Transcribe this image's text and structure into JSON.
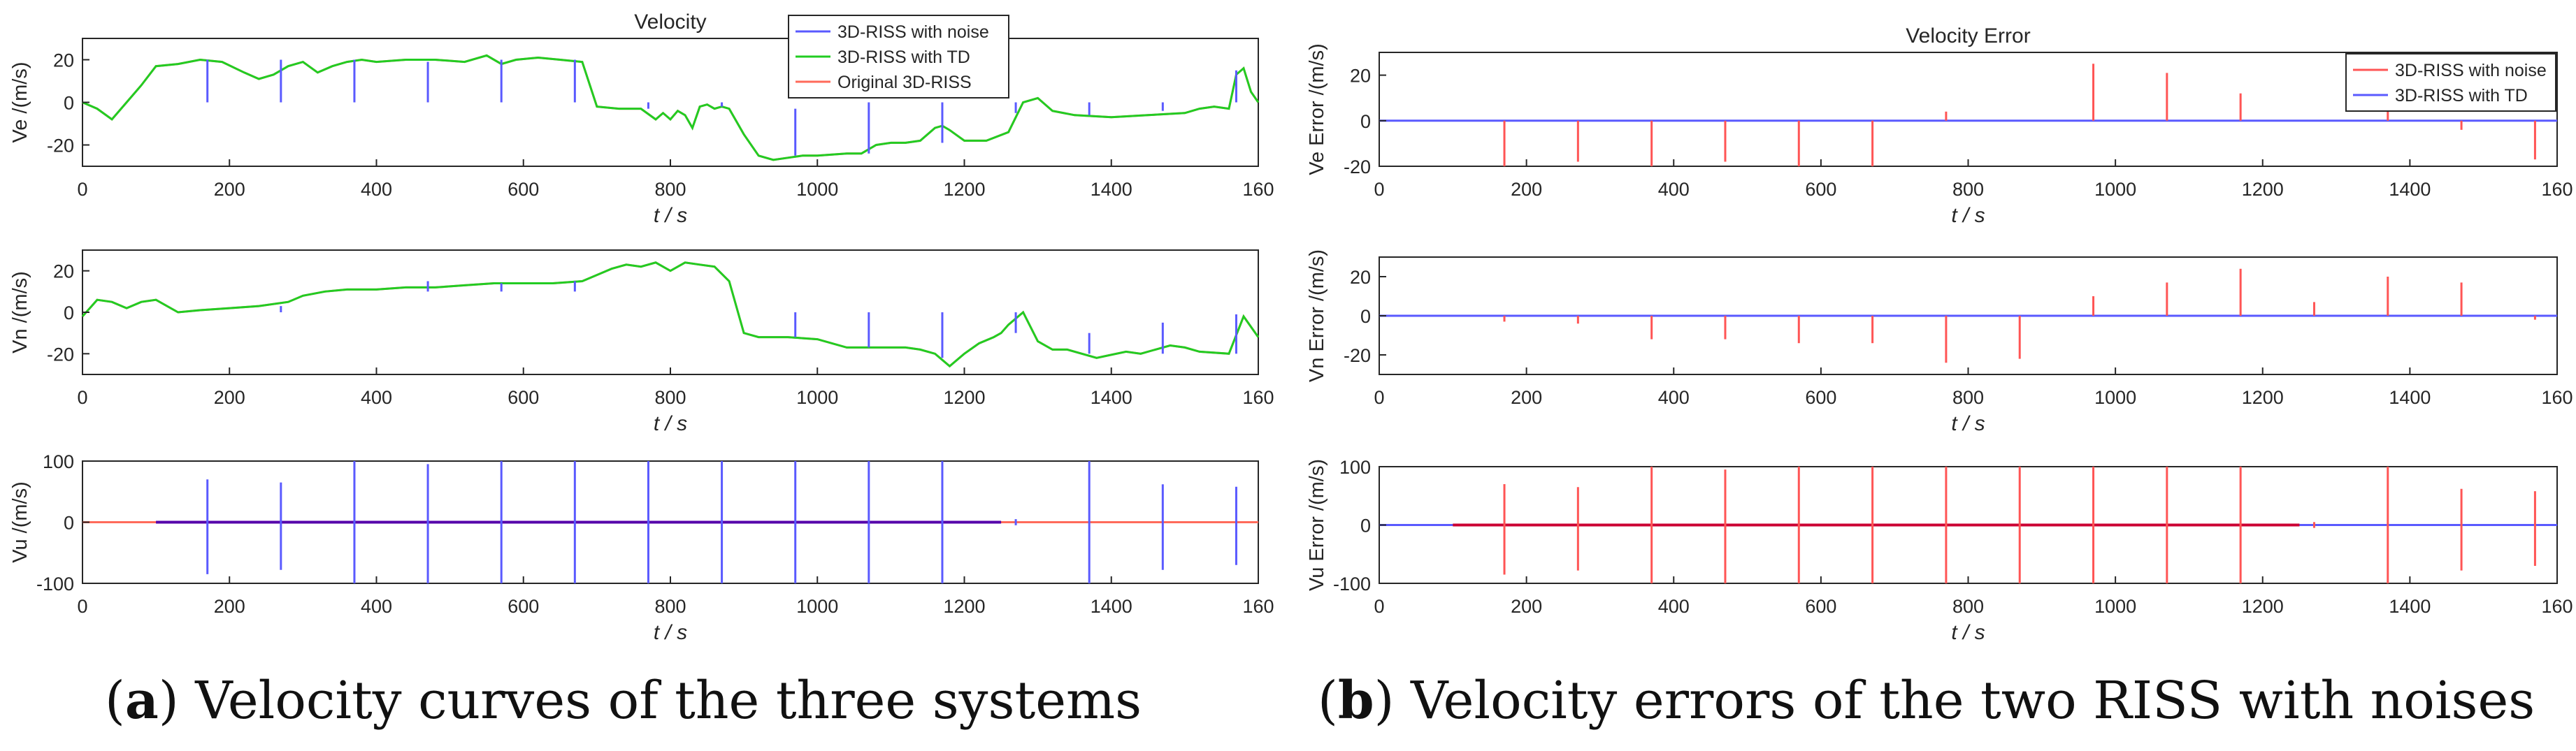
{
  "figure": {
    "caption_a": {
      "label": "a",
      "text": "Velocity curves of the three systems"
    },
    "caption_b": {
      "label": "b",
      "text": "Velocity errors of the two RISS with noises"
    }
  },
  "colors": {
    "noise": "#5a5aff",
    "td": "#22cc22",
    "original": "#ff6a5a",
    "err_noise": "#ff5555",
    "err_td": "#5a5aff",
    "vu_overlay": "#5500aa",
    "err_vu_overlay": "#cc0033"
  },
  "chart_data": [
    {
      "id": "a1",
      "type": "line",
      "title": "Velocity",
      "ylabel": "Ve /(m/s)",
      "xlabel": "t / s",
      "xlim": [
        0,
        1600
      ],
      "ylim": [
        -30,
        30
      ],
      "xticks": [
        "0",
        "200",
        "400",
        "600",
        "800",
        "1000",
        "1200",
        "1400",
        "160"
      ],
      "yticks": [
        20,
        0,
        -20
      ],
      "legend": [
        "3D-RISS with noise",
        "3D-RISS with TD",
        "Original 3D-RISS"
      ],
      "legend_pos": "top-right",
      "series": [
        {
          "name": "Original 3D-RISS",
          "style": "original",
          "x": [
            0,
            20,
            40,
            60,
            80,
            100,
            130,
            160,
            190,
            220,
            240,
            260,
            280,
            300,
            320,
            340,
            360,
            380,
            400,
            440,
            480,
            520,
            550,
            570,
            590,
            620,
            650,
            680,
            700,
            730,
            760,
            780,
            790,
            800,
            810,
            820,
            830,
            840,
            850,
            860,
            870,
            880,
            900,
            920,
            940,
            960,
            980,
            1000,
            1040,
            1060,
            1080,
            1100,
            1120,
            1140,
            1160,
            1170,
            1180,
            1200,
            1230,
            1260,
            1280,
            1300,
            1320,
            1350,
            1400,
            1450,
            1500,
            1520,
            1540,
            1560,
            1570,
            1580,
            1590,
            1600
          ],
          "y": [
            0,
            -3,
            -8,
            0,
            8,
            17,
            18,
            20,
            19,
            14,
            11,
            13,
            17,
            19,
            14,
            17,
            19,
            20,
            19,
            20,
            20,
            19,
            22,
            18,
            20,
            21,
            20,
            19,
            -2,
            -3,
            -3,
            -8,
            -5,
            -8,
            -4,
            -6,
            -12,
            -2,
            -1,
            -3,
            -2,
            -3,
            -15,
            -25,
            -27,
            -26,
            -25,
            -25,
            -24,
            -24,
            -20,
            -19,
            -19,
            -18,
            -12,
            -11,
            -13,
            -18,
            -18,
            -14,
            0,
            2,
            -4,
            -6,
            -7,
            -6,
            -5,
            -3,
            -2,
            -3,
            13,
            16,
            5,
            0
          ]
        },
        {
          "name": "3D-RISS with TD",
          "style": "td",
          "x": [
            0,
            20,
            40,
            60,
            80,
            100,
            130,
            160,
            190,
            220,
            240,
            260,
            280,
            300,
            320,
            340,
            360,
            380,
            400,
            440,
            480,
            520,
            550,
            570,
            590,
            620,
            650,
            680,
            700,
            730,
            760,
            780,
            790,
            800,
            810,
            820,
            830,
            840,
            850,
            860,
            870,
            880,
            900,
            920,
            940,
            960,
            980,
            1000,
            1040,
            1060,
            1080,
            1100,
            1120,
            1140,
            1160,
            1170,
            1180,
            1200,
            1230,
            1260,
            1280,
            1300,
            1320,
            1350,
            1400,
            1450,
            1500,
            1520,
            1540,
            1560,
            1570,
            1580,
            1590,
            1600
          ],
          "y": [
            0,
            -3,
            -8,
            0,
            8,
            17,
            18,
            20,
            19,
            14,
            11,
            13,
            17,
            19,
            14,
            17,
            19,
            20,
            19,
            20,
            20,
            19,
            22,
            18,
            20,
            21,
            20,
            19,
            -2,
            -3,
            -3,
            -8,
            -5,
            -8,
            -4,
            -6,
            -12,
            -2,
            -1,
            -3,
            -2,
            -3,
            -15,
            -25,
            -27,
            -26,
            -25,
            -25,
            -24,
            -24,
            -20,
            -19,
            -19,
            -18,
            -12,
            -11,
            -13,
            -18,
            -18,
            -14,
            0,
            2,
            -4,
            -6,
            -7,
            -6,
            -5,
            -3,
            -2,
            -3,
            13,
            16,
            5,
            0
          ]
        }
      ],
      "spikes": {
        "name": "3D-RISS with noise",
        "style": "noise",
        "x": [
          170,
          270,
          370,
          470,
          570,
          670,
          770,
          870,
          970,
          1070,
          1170,
          1270,
          1370,
          1470,
          1570
        ],
        "y0": [
          20,
          20,
          20,
          19,
          20,
          20,
          -3,
          -2,
          -25,
          -24,
          -19,
          -5,
          -6,
          -4,
          15
        ],
        "y1": [
          0,
          0,
          0,
          0,
          0,
          0,
          0,
          0,
          -3,
          0,
          0,
          0,
          0,
          0,
          0
        ]
      }
    },
    {
      "id": "a2",
      "type": "line",
      "title": "",
      "ylabel": "Vn /(m/s)",
      "xlabel": "t / s",
      "xlim": [
        0,
        1600
      ],
      "ylim": [
        -30,
        30
      ],
      "xticks": [
        "0",
        "200",
        "400",
        "600",
        "800",
        "1000",
        "1200",
        "1400",
        "160"
      ],
      "yticks": [
        20,
        0,
        -20
      ],
      "series": [
        {
          "name": "Original 3D-RISS",
          "style": "original",
          "x": [
            0,
            10,
            20,
            40,
            60,
            80,
            100,
            130,
            160,
            200,
            240,
            280,
            300,
            330,
            360,
            400,
            440,
            480,
            520,
            560,
            600,
            640,
            680,
            700,
            720,
            740,
            760,
            780,
            800,
            820,
            840,
            860,
            880,
            900,
            920,
            960,
            1000,
            1040,
            1080,
            1120,
            1140,
            1160,
            1180,
            1200,
            1220,
            1240,
            1250,
            1260,
            1280,
            1300,
            1320,
            1340,
            1380,
            1420,
            1440,
            1460,
            1480,
            1500,
            1520,
            1560,
            1580,
            1600
          ],
          "y": [
            -2,
            2,
            6,
            5,
            2,
            5,
            6,
            0,
            1,
            2,
            3,
            5,
            8,
            10,
            11,
            11,
            12,
            12,
            13,
            14,
            14,
            14,
            15,
            18,
            21,
            23,
            22,
            24,
            20,
            24,
            23,
            22,
            15,
            -10,
            -12,
            -12,
            -13,
            -17,
            -17,
            -17,
            -18,
            -20,
            -26,
            -20,
            -15,
            -12,
            -10,
            -6,
            0,
            -14,
            -18,
            -18,
            -22,
            -19,
            -20,
            -18,
            -16,
            -17,
            -19,
            -20,
            -2,
            -12
          ]
        },
        {
          "name": "3D-RISS with TD",
          "style": "td",
          "x": [
            0,
            10,
            20,
            40,
            60,
            80,
            100,
            130,
            160,
            200,
            240,
            280,
            300,
            330,
            360,
            400,
            440,
            480,
            520,
            560,
            600,
            640,
            680,
            700,
            720,
            740,
            760,
            780,
            800,
            820,
            840,
            860,
            880,
            900,
            920,
            960,
            1000,
            1040,
            1080,
            1120,
            1140,
            1160,
            1180,
            1200,
            1220,
            1240,
            1250,
            1260,
            1280,
            1300,
            1320,
            1340,
            1380,
            1420,
            1440,
            1460,
            1480,
            1500,
            1520,
            1560,
            1580,
            1600
          ],
          "y": [
            -2,
            2,
            6,
            5,
            2,
            5,
            6,
            0,
            1,
            2,
            3,
            5,
            8,
            10,
            11,
            11,
            12,
            12,
            13,
            14,
            14,
            14,
            15,
            18,
            21,
            23,
            22,
            24,
            20,
            24,
            23,
            22,
            15,
            -10,
            -12,
            -12,
            -13,
            -17,
            -17,
            -17,
            -18,
            -20,
            -26,
            -20,
            -15,
            -12,
            -10,
            -6,
            0,
            -14,
            -18,
            -18,
            -22,
            -19,
            -20,
            -18,
            -16,
            -17,
            -19,
            -20,
            -2,
            -12
          ]
        }
      ],
      "spikes": {
        "name": "3D-RISS with noise",
        "style": "noise",
        "x": [
          170,
          270,
          370,
          470,
          570,
          670,
          770,
          870,
          970,
          1070,
          1170,
          1270,
          1370,
          1470,
          1570
        ],
        "y0": [
          0,
          0,
          10,
          10,
          10,
          10,
          23,
          22,
          0,
          -17,
          -22,
          0,
          -20,
          -20,
          -20
        ],
        "y1": [
          0,
          3,
          10,
          15,
          14,
          15,
          23,
          22,
          -12,
          0,
          0,
          -10,
          -10,
          -5,
          -1
        ]
      }
    },
    {
      "id": "a3",
      "type": "line",
      "title": "",
      "ylabel": "Vu /(m/s)",
      "xlabel": "t / s",
      "xlim": [
        0,
        1600
      ],
      "ylim": [
        -100,
        100
      ],
      "xticks": [
        "0",
        "200",
        "400",
        "600",
        "800",
        "1000",
        "1200",
        "1400",
        "160"
      ],
      "yticks": [
        100,
        0,
        -100
      ],
      "series": [
        {
          "name": "Original 3D-RISS",
          "style": "original",
          "x": [
            0,
            1600
          ],
          "y": [
            0,
            0
          ]
        },
        {
          "name": "3D-RISS with TD",
          "style": "vu_overlay",
          "x": [
            100,
            1250
          ],
          "y": [
            0,
            0
          ]
        }
      ],
      "spikes": {
        "name": "3D-RISS with noise",
        "style": "noise",
        "x": [
          170,
          270,
          370,
          470,
          570,
          670,
          770,
          870,
          970,
          1070,
          1170,
          1270,
          1370,
          1470,
          1570
        ],
        "y0": [
          -85,
          -78,
          -100,
          -100,
          -100,
          -100,
          -100,
          -100,
          -100,
          -100,
          -100,
          -5,
          -100,
          -78,
          -70
        ],
        "y1": [
          70,
          65,
          100,
          95,
          100,
          100,
          100,
          100,
          100,
          100,
          100,
          5,
          100,
          62,
          58
        ]
      }
    },
    {
      "id": "b1",
      "type": "line",
      "title": "Velocity Error",
      "ylabel": "Ve Error /(m/s)",
      "xlabel": "t / s",
      "xlim": [
        0,
        1600
      ],
      "ylim": [
        -20,
        30
      ],
      "xticks": [
        "0",
        "200",
        "400",
        "600",
        "800",
        "1000",
        "1200",
        "1400",
        "160"
      ],
      "yticks": [
        20,
        0,
        -20
      ],
      "legend": [
        "3D-RISS with noise",
        "3D-RISS with TD"
      ],
      "legend_pos": "top-right",
      "series": [
        {
          "name": "3D-RISS with TD",
          "style": "err_td",
          "x": [
            0,
            1600
          ],
          "y": [
            0,
            0
          ]
        }
      ],
      "spikes": {
        "name": "3D-RISS with noise",
        "style": "err_noise",
        "x": [
          170,
          270,
          370,
          470,
          570,
          670,
          770,
          970,
          1070,
          1170,
          1370,
          1470,
          1570
        ],
        "y0": [
          -20,
          -18,
          -20,
          -18,
          -20,
          -20,
          0,
          0,
          0,
          0,
          0,
          -4,
          -17
        ],
        "y1": [
          0,
          0,
          0,
          0,
          0,
          0,
          4,
          25,
          21,
          12,
          8,
          0,
          0
        ]
      }
    },
    {
      "id": "b2",
      "type": "line",
      "title": "",
      "ylabel": "Vn Error /(m/s)",
      "xlabel": "t / s",
      "xlim": [
        0,
        1600
      ],
      "ylim": [
        -30,
        30
      ],
      "xticks": [
        "0",
        "200",
        "400",
        "600",
        "800",
        "1000",
        "1200",
        "1400",
        "160"
      ],
      "yticks": [
        20,
        0,
        -20
      ],
      "series": [
        {
          "name": "3D-RISS with TD",
          "style": "err_td",
          "x": [
            0,
            1600
          ],
          "y": [
            0,
            0
          ]
        }
      ],
      "spikes": {
        "name": "3D-RISS with noise",
        "style": "err_noise",
        "x": [
          170,
          270,
          370,
          470,
          570,
          670,
          770,
          870,
          970,
          1070,
          1170,
          1270,
          1370,
          1470,
          1570
        ],
        "y0": [
          -3,
          -4,
          -12,
          -12,
          -14,
          -14,
          -24,
          -22,
          0,
          0,
          0,
          0,
          0,
          0,
          -2
        ],
        "y1": [
          0,
          0,
          0,
          0,
          0,
          0,
          0,
          0,
          10,
          17,
          24,
          7,
          20,
          17,
          0
        ]
      }
    },
    {
      "id": "b3",
      "type": "line",
      "title": "",
      "ylabel": "Vu Error /(m/s)",
      "xlabel": "t / s",
      "xlim": [
        0,
        1600
      ],
      "ylim": [
        -100,
        100
      ],
      "xticks": [
        "0",
        "200",
        "400",
        "600",
        "800",
        "1000",
        "1200",
        "1400",
        "160"
      ],
      "yticks": [
        100,
        0,
        -100
      ],
      "series": [
        {
          "name": "3D-RISS with TD",
          "style": "err_td",
          "x": [
            0,
            1600
          ],
          "y": [
            0,
            0
          ]
        },
        {
          "name": "3D-RISS with noise",
          "style": "err_vu_overlay",
          "x": [
            100,
            1250
          ],
          "y": [
            0,
            0
          ]
        }
      ],
      "spikes": {
        "name": "3D-RISS with noise",
        "style": "err_noise",
        "x": [
          170,
          270,
          370,
          470,
          570,
          670,
          770,
          870,
          970,
          1070,
          1170,
          1270,
          1370,
          1470,
          1570
        ],
        "y0": [
          -85,
          -78,
          -100,
          -100,
          -100,
          -100,
          -100,
          -100,
          -100,
          -100,
          -100,
          -5,
          -100,
          -78,
          -70
        ],
        "y1": [
          70,
          65,
          100,
          95,
          100,
          100,
          100,
          100,
          100,
          100,
          100,
          5,
          100,
          62,
          58
        ]
      }
    }
  ]
}
